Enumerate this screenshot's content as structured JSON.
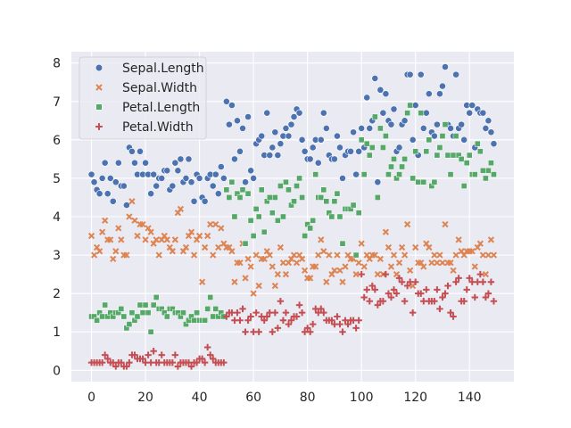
{
  "chart_data": {
    "type": "scatter",
    "x": {
      "start": 0,
      "count": 150
    },
    "xlim": [
      -7.45,
      156.45
    ],
    "ylim": [
      -0.295,
      8.295
    ],
    "xticks": [
      0,
      20,
      40,
      60,
      80,
      100,
      120,
      140
    ],
    "yticks": [
      0,
      1,
      2,
      3,
      4,
      5,
      6,
      7,
      8
    ],
    "grid": true,
    "legend_position": "top-left",
    "series": [
      {
        "name": "Sepal.Length",
        "marker": "circle",
        "color": "#4c72b0",
        "values": [
          5.1,
          4.9,
          4.7,
          4.6,
          5.0,
          5.4,
          4.6,
          5.0,
          4.4,
          4.9,
          5.4,
          4.8,
          4.8,
          4.3,
          5.8,
          5.7,
          5.4,
          5.1,
          5.7,
          5.1,
          5.4,
          5.1,
          4.6,
          5.1,
          4.8,
          5.0,
          5.0,
          5.2,
          5.2,
          4.7,
          4.8,
          5.4,
          5.2,
          5.5,
          4.9,
          5.0,
          5.5,
          4.9,
          4.4,
          5.1,
          5.0,
          4.5,
          4.4,
          5.0,
          5.1,
          4.8,
          5.1,
          4.6,
          5.3,
          5.0,
          7.0,
          6.4,
          6.9,
          5.5,
          6.5,
          5.7,
          6.3,
          4.9,
          6.6,
          5.2,
          5.0,
          5.9,
          6.0,
          6.1,
          5.6,
          6.7,
          5.6,
          5.8,
          6.2,
          5.6,
          5.9,
          6.1,
          6.3,
          6.1,
          6.4,
          6.6,
          6.8,
          6.7,
          6.0,
          5.7,
          5.5,
          5.5,
          5.8,
          6.0,
          5.4,
          6.0,
          6.7,
          6.3,
          5.6,
          5.5,
          5.5,
          6.1,
          5.8,
          5.0,
          5.6,
          5.7,
          5.7,
          6.2,
          5.1,
          5.7,
          6.3,
          5.8,
          7.1,
          6.3,
          6.5,
          7.6,
          4.9,
          7.3,
          6.7,
          7.2,
          6.5,
          6.4,
          6.8,
          5.7,
          5.8,
          6.4,
          6.5,
          7.7,
          7.7,
          6.0,
          6.9,
          5.6,
          7.7,
          6.3,
          6.7,
          7.2,
          6.2,
          6.1,
          6.4,
          7.2,
          7.4,
          7.9,
          6.4,
          6.3,
          6.1,
          7.7,
          6.3,
          6.4,
          6.0,
          6.9,
          6.7,
          6.9,
          5.8,
          6.8,
          6.7,
          6.7,
          6.3,
          6.5,
          6.2,
          5.9
        ]
      },
      {
        "name": "Sepal.Width",
        "marker": "x",
        "color": "#dd8452",
        "values": [
          3.5,
          3.0,
          3.2,
          3.1,
          3.6,
          3.9,
          3.4,
          3.4,
          2.9,
          3.1,
          3.7,
          3.4,
          3.0,
          3.0,
          4.0,
          4.4,
          3.9,
          3.5,
          3.8,
          3.8,
          3.4,
          3.7,
          3.6,
          3.3,
          3.4,
          3.0,
          3.4,
          3.5,
          3.4,
          3.2,
          3.1,
          3.4,
          4.1,
          4.2,
          3.1,
          3.2,
          3.5,
          3.6,
          3.0,
          3.4,
          3.5,
          2.3,
          3.2,
          3.5,
          3.8,
          3.0,
          3.8,
          3.2,
          3.7,
          3.3,
          3.2,
          3.2,
          3.1,
          2.3,
          2.8,
          2.8,
          3.3,
          2.4,
          2.9,
          2.7,
          2.0,
          3.0,
          2.2,
          2.9,
          2.9,
          3.1,
          3.0,
          2.7,
          2.2,
          2.5,
          3.2,
          2.8,
          2.5,
          2.8,
          2.9,
          3.0,
          2.8,
          3.0,
          2.9,
          2.6,
          2.4,
          2.4,
          2.7,
          2.7,
          3.0,
          3.4,
          3.1,
          2.3,
          3.0,
          2.5,
          2.6,
          3.0,
          2.6,
          2.3,
          2.7,
          3.0,
          2.9,
          2.9,
          2.5,
          2.8,
          3.3,
          2.7,
          3.0,
          2.9,
          3.0,
          3.0,
          2.5,
          2.9,
          2.5,
          3.6,
          3.2,
          2.7,
          3.0,
          2.5,
          2.8,
          3.2,
          3.0,
          3.8,
          2.6,
          2.2,
          3.2,
          2.8,
          2.8,
          2.7,
          3.3,
          3.2,
          2.8,
          3.0,
          2.8,
          3.0,
          2.8,
          3.8,
          2.8,
          2.8,
          2.6,
          3.0,
          3.4,
          3.1,
          3.0,
          3.1,
          3.1,
          3.1,
          2.7,
          3.2,
          3.3,
          3.0,
          2.5,
          3.0,
          3.4,
          3.0
        ]
      },
      {
        "name": "Petal.Length",
        "marker": "square",
        "color": "#55a868",
        "values": [
          1.4,
          1.4,
          1.3,
          1.5,
          1.4,
          1.7,
          1.4,
          1.5,
          1.4,
          1.5,
          1.5,
          1.6,
          1.4,
          1.1,
          1.2,
          1.5,
          1.3,
          1.4,
          1.7,
          1.5,
          1.7,
          1.5,
          1.0,
          1.7,
          1.9,
          1.6,
          1.6,
          1.5,
          1.4,
          1.6,
          1.6,
          1.5,
          1.5,
          1.4,
          1.5,
          1.2,
          1.3,
          1.4,
          1.3,
          1.5,
          1.3,
          1.3,
          1.3,
          1.6,
          1.9,
          1.4,
          1.6,
          1.4,
          1.5,
          1.4,
          4.7,
          4.5,
          4.9,
          4.0,
          4.6,
          4.5,
          4.7,
          3.3,
          4.6,
          3.9,
          3.5,
          4.2,
          4.0,
          4.7,
          3.6,
          4.4,
          4.5,
          4.1,
          4.5,
          3.9,
          4.8,
          4.0,
          4.9,
          4.7,
          4.3,
          4.4,
          4.8,
          5.0,
          4.5,
          3.5,
          3.8,
          3.7,
          3.9,
          5.1,
          4.5,
          4.5,
          4.7,
          4.4,
          4.1,
          4.0,
          4.4,
          4.6,
          4.0,
          3.3,
          4.2,
          4.2,
          4.2,
          4.3,
          3.0,
          4.1,
          6.0,
          5.1,
          5.9,
          5.6,
          5.8,
          6.6,
          4.5,
          6.3,
          5.8,
          6.1,
          5.1,
          5.3,
          5.5,
          5.0,
          5.1,
          5.3,
          5.5,
          6.7,
          6.9,
          5.0,
          5.7,
          4.9,
          6.7,
          4.9,
          5.7,
          6.0,
          4.8,
          4.9,
          5.6,
          5.8,
          6.1,
          6.4,
          5.6,
          5.1,
          5.6,
          6.1,
          5.6,
          5.5,
          4.8,
          5.4,
          5.6,
          5.1,
          5.1,
          5.9,
          5.7,
          5.2,
          5.0,
          5.2,
          5.4,
          5.1
        ]
      },
      {
        "name": "Petal.Width",
        "marker": "plus",
        "color": "#c44e52",
        "values": [
          0.2,
          0.2,
          0.2,
          0.2,
          0.2,
          0.4,
          0.3,
          0.2,
          0.2,
          0.1,
          0.2,
          0.2,
          0.1,
          0.1,
          0.2,
          0.4,
          0.4,
          0.3,
          0.3,
          0.3,
          0.2,
          0.4,
          0.2,
          0.5,
          0.2,
          0.2,
          0.4,
          0.2,
          0.2,
          0.2,
          0.2,
          0.4,
          0.1,
          0.2,
          0.2,
          0.2,
          0.2,
          0.1,
          0.2,
          0.2,
          0.3,
          0.3,
          0.2,
          0.6,
          0.4,
          0.3,
          0.2,
          0.2,
          0.2,
          0.2,
          1.4,
          1.5,
          1.5,
          1.3,
          1.5,
          1.3,
          1.6,
          1.0,
          1.3,
          1.4,
          1.0,
          1.5,
          1.0,
          1.4,
          1.3,
          1.4,
          1.5,
          1.0,
          1.5,
          1.1,
          1.8,
          1.3,
          1.5,
          1.2,
          1.3,
          1.4,
          1.4,
          1.7,
          1.5,
          1.0,
          1.1,
          1.0,
          1.2,
          1.6,
          1.5,
          1.6,
          1.5,
          1.3,
          1.3,
          1.3,
          1.2,
          1.4,
          1.2,
          1.0,
          1.3,
          1.2,
          1.3,
          1.3,
          1.1,
          1.3,
          2.5,
          1.9,
          2.1,
          1.8,
          2.2,
          2.1,
          1.7,
          1.8,
          1.8,
          2.5,
          2.0,
          1.9,
          2.1,
          2.0,
          2.4,
          2.3,
          1.8,
          2.2,
          2.3,
          1.5,
          2.3,
          2.0,
          2.0,
          1.8,
          2.1,
          1.8,
          1.8,
          1.8,
          2.1,
          1.6,
          1.9,
          2.0,
          2.2,
          1.5,
          1.4,
          2.3,
          2.4,
          1.8,
          1.8,
          2.1,
          2.4,
          2.3,
          1.9,
          2.3,
          2.5,
          2.3,
          1.9,
          2.0,
          2.3,
          1.8
        ]
      }
    ]
  }
}
